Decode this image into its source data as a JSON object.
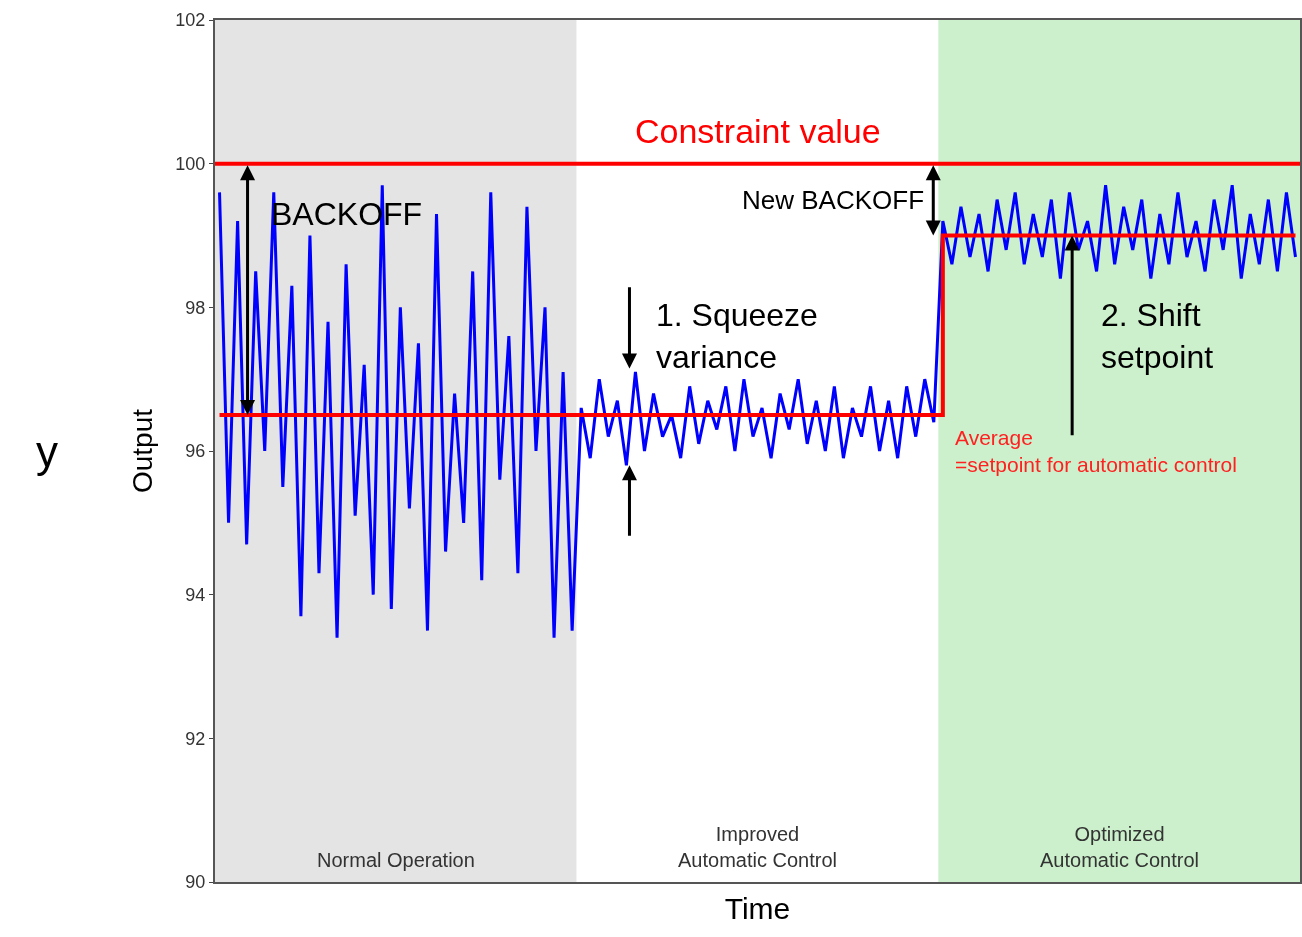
{
  "chart_data": {
    "type": "line",
    "xlabel": "Time",
    "ylabel": "Output",
    "categories": [
      null,
      null,
      null,
      null,
      null,
      null,
      null,
      null,
      null,
      null,
      null,
      null,
      null,
      null,
      null,
      null,
      null,
      null,
      null,
      null,
      null,
      null,
      null,
      null,
      null,
      null,
      null,
      null,
      null,
      null,
      null,
      null,
      null,
      null,
      null,
      null,
      null,
      null,
      null,
      null,
      null,
      null,
      null,
      null,
      null,
      null,
      null,
      null,
      null,
      null,
      null,
      null,
      null,
      null,
      null,
      null,
      null,
      null,
      null,
      null,
      null,
      null,
      null,
      null,
      null,
      null,
      null,
      null,
      null,
      null,
      null,
      null,
      null,
      null,
      null,
      null,
      null,
      null,
      null,
      null,
      null,
      null,
      null,
      null,
      null,
      null,
      null,
      null,
      null,
      null,
      null,
      null,
      null,
      null,
      null,
      null,
      null,
      null,
      null,
      null,
      null,
      null,
      null,
      null,
      null,
      null,
      null,
      null,
      null,
      null,
      null,
      null,
      null,
      null,
      null,
      null,
      null,
      null,
      null,
      null
    ],
    "series": [
      {
        "color": "#0000ff",
        "values": [
          99.6,
          95.0,
          99.2,
          94.7,
          98.5,
          96.0,
          99.6,
          95.5,
          98.3,
          93.7,
          99.0,
          94.3,
          97.8,
          93.4,
          98.6,
          95.1,
          97.2,
          94.0,
          99.7,
          93.8,
          98.0,
          95.2,
          97.5,
          93.5,
          99.3,
          94.6,
          96.8,
          95.0,
          98.5,
          94.2,
          99.6,
          95.6,
          97.6,
          94.3,
          99.4,
          96.0,
          98.0,
          93.4,
          97.1,
          93.5,
          96.6,
          95.9,
          97.0,
          96.2,
          96.7,
          95.8,
          97.1,
          96.0,
          96.8,
          96.2,
          96.5,
          95.9,
          96.9,
          96.1,
          96.7,
          96.3,
          96.9,
          96.0,
          97.0,
          96.2,
          96.6,
          95.9,
          96.8,
          96.3,
          97.0,
          96.1,
          96.7,
          96.0,
          96.9,
          95.9,
          96.6,
          96.2,
          96.9,
          96.0,
          96.7,
          95.9,
          96.9,
          96.2,
          97.0,
          96.4,
          99.2,
          98.6,
          99.4,
          98.7,
          99.3,
          98.5,
          99.5,
          98.8,
          99.6,
          98.6,
          99.3,
          98.7,
          99.5,
          98.4,
          99.6,
          98.8,
          99.2,
          98.5,
          99.7,
          98.6,
          99.4,
          98.8,
          99.5,
          98.4,
          99.3,
          98.6,
          99.6,
          98.7,
          99.2,
          98.5,
          99.5,
          98.8,
          99.7,
          98.4,
          99.3,
          98.6,
          99.5,
          98.5,
          99.6,
          98.7
        ]
      },
      {
        "type": "step",
        "color": "#ff0000",
        "values": [
          96.5,
          96.5,
          96.5,
          96.5,
          96.5,
          96.5,
          96.5,
          96.5,
          96.5,
          96.5,
          96.5,
          96.5,
          96.5,
          96.5,
          96.5,
          96.5,
          96.5,
          96.5,
          96.5,
          96.5,
          96.5,
          96.5,
          96.5,
          96.5,
          96.5,
          96.5,
          96.5,
          96.5,
          96.5,
          96.5,
          96.5,
          96.5,
          96.5,
          96.5,
          96.5,
          96.5,
          96.5,
          96.5,
          96.5,
          96.5,
          96.5,
          96.5,
          96.5,
          96.5,
          96.5,
          96.5,
          96.5,
          96.5,
          96.5,
          96.5,
          96.5,
          96.5,
          96.5,
          96.5,
          96.5,
          96.5,
          96.5,
          96.5,
          96.5,
          96.5,
          96.5,
          96.5,
          96.5,
          96.5,
          96.5,
          96.5,
          96.5,
          96.5,
          96.5,
          96.5,
          96.5,
          96.5,
          96.5,
          96.5,
          96.5,
          96.5,
          96.5,
          96.5,
          96.5,
          96.5,
          99,
          99,
          99,
          99,
          99,
          99,
          99,
          99,
          99,
          99,
          99,
          99,
          99,
          99,
          99,
          99,
          99,
          99,
          99,
          99,
          99,
          99,
          99,
          99,
          99,
          99,
          99,
          99,
          99,
          99,
          99,
          99,
          99,
          99,
          99,
          99,
          99,
          99,
          99,
          99
        ]
      }
    ],
    "ylim": [
      90,
      102
    ],
    "yticks": [
      90,
      92,
      94,
      96,
      98,
      100,
      102
    ],
    "grid": false,
    "tick_labels": "y",
    "marker": "none",
    "line_style": "solid",
    "ref_lines": [
      {
        "axis": "y",
        "value": 100,
        "label": "Constraint value",
        "color": "#ff0000"
      }
    ],
    "annotations": [
      "BACKOFF",
      "New BACKOFF",
      "1. Squeeze\nvariance",
      "2. Shift\nsetpoint",
      "Average\n=setpoint for automatic control",
      "y",
      "Normal Operation",
      "Improved\nAutomatic Control",
      "Optimized\nAutomatic Control"
    ]
  }
}
